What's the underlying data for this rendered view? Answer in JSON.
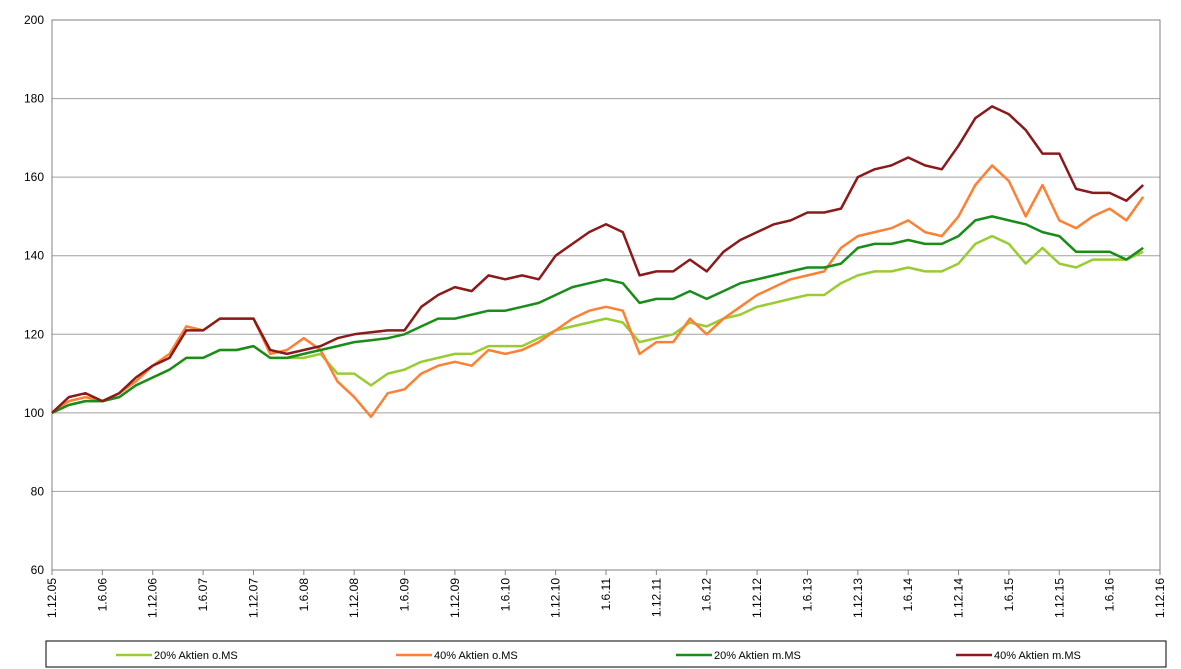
{
  "chart_data": {
    "type": "line",
    "categories": [
      "1.12.05",
      null,
      null,
      "1.6.06",
      null,
      null,
      "1.12.06",
      null,
      null,
      "1.6.07",
      null,
      null,
      "1.12.07",
      null,
      null,
      "1.6.08",
      null,
      null,
      "1.12.08",
      null,
      null,
      "1.6.09",
      null,
      null,
      "1.12.09",
      null,
      null,
      "1.6.10",
      null,
      null,
      "1.12.10",
      null,
      null,
      "1.6.11",
      null,
      null,
      "1.12.11",
      null,
      null,
      "1.6.12",
      null,
      null,
      "1.12.12",
      null,
      null,
      "1.6.13",
      null,
      null,
      "1.12.13",
      null,
      null,
      "1.6.14",
      null,
      null,
      "1.12.14",
      null,
      null,
      "1.6.15",
      null,
      null,
      "1.12.15",
      null,
      null,
      "1.6.16",
      null,
      null,
      "1.12.16"
    ],
    "series": [
      {
        "name": "20% Aktien o.MS",
        "color": "#99cc33",
        "values": [
          100,
          102,
          103,
          103,
          104,
          107,
          109,
          111,
          114,
          114,
          116,
          116,
          117,
          114,
          114,
          114,
          115,
          110,
          110,
          107,
          110,
          111,
          113,
          114,
          115,
          115,
          117,
          117,
          117,
          119,
          121,
          122,
          123,
          124,
          123,
          118,
          119,
          120,
          123,
          122,
          124,
          125,
          127,
          128,
          129,
          130,
          130,
          133,
          135,
          136,
          136,
          137,
          136,
          136,
          138,
          143,
          145,
          143,
          138,
          142,
          138,
          137,
          139,
          139,
          139,
          141,
          null
        ]
      },
      {
        "name": "40% Aktien o.MS",
        "color": "#ff8033",
        "values": [
          100,
          103,
          104,
          103,
          105,
          108,
          112,
          115,
          122,
          121,
          124,
          124,
          124,
          115,
          116,
          119,
          116,
          108,
          104,
          99,
          105,
          106,
          110,
          112,
          113,
          112,
          116,
          115,
          116,
          118,
          121,
          124,
          126,
          127,
          126,
          115,
          118,
          118,
          124,
          120,
          124,
          127,
          130,
          132,
          134,
          135,
          136,
          142,
          145,
          146,
          147,
          149,
          146,
          145,
          150,
          158,
          163,
          159,
          150,
          158,
          149,
          147,
          150,
          152,
          149,
          155,
          null
        ]
      },
      {
        "name": "20% Aktien m.MS",
        "color": "#1a8c1a",
        "values": [
          100,
          102,
          103,
          103,
          104,
          107,
          109,
          111,
          114,
          114,
          116,
          116,
          117,
          114,
          114,
          115,
          116,
          117,
          118,
          118.5,
          119,
          120,
          122,
          124,
          124,
          125,
          126,
          126,
          127,
          128,
          130,
          132,
          133,
          134,
          133,
          128,
          129,
          129,
          131,
          129,
          131,
          133,
          134,
          135,
          136,
          137,
          137,
          138,
          142,
          143,
          143,
          144,
          143,
          143,
          145,
          149,
          150,
          149,
          148,
          146,
          145,
          141,
          141,
          141,
          139,
          142,
          null
        ]
      },
      {
        "name": "40% Aktien m.MS",
        "color": "#8b1a1a",
        "values": [
          100,
          104,
          105,
          103,
          105,
          109,
          112,
          114,
          121,
          121,
          124,
          124,
          124,
          116,
          115,
          116,
          117,
          119,
          120,
          120.5,
          121,
          121,
          127,
          130,
          132,
          131,
          135,
          134,
          135,
          134,
          140,
          143,
          146,
          148,
          146,
          135,
          136,
          136,
          139,
          136,
          141,
          144,
          146,
          148,
          149,
          151,
          151,
          152,
          160,
          162,
          163,
          165,
          163,
          162,
          168,
          175,
          178,
          176,
          172,
          166,
          166,
          157,
          156,
          156,
          154,
          158,
          null
        ]
      }
    ],
    "ylim": [
      60,
      200
    ],
    "yticks": [
      60,
      80,
      100,
      120,
      140,
      160,
      180,
      200
    ],
    "grid": true
  }
}
